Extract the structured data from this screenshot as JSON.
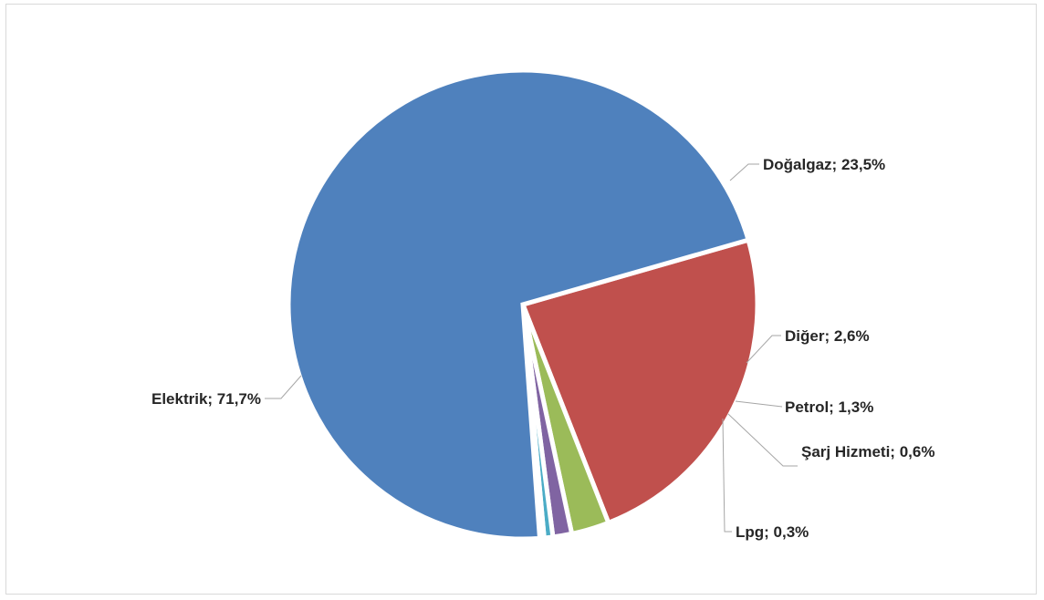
{
  "chart_data": {
    "type": "pie",
    "title": "",
    "slices": [
      {
        "name": "Doğalgaz",
        "value": 23.5,
        "label": "Doğalgaz; 23,5%",
        "color": "#c0504d"
      },
      {
        "name": "Diğer",
        "value": 2.6,
        "label": "Diğer; 2,6%",
        "color": "#9bbb59"
      },
      {
        "name": "Petrol",
        "value": 1.3,
        "label": "Petrol; 1,3%",
        "color": "#8064a2"
      },
      {
        "name": "Şarj Hizmeti",
        "value": 0.6,
        "label": "Şarj Hizmeti; 0,6%",
        "color": "#4bacc6"
      },
      {
        "name": "Lpg",
        "value": 0.3,
        "label": "Lpg; 0,3%",
        "color": "#f79646"
      },
      {
        "name": "Elektrik",
        "value": 71.7,
        "label": "Elektrik; 71,7%",
        "color": "#4f81bd"
      }
    ],
    "legend": "none",
    "data_labels": "outside-with-leader-lines"
  }
}
